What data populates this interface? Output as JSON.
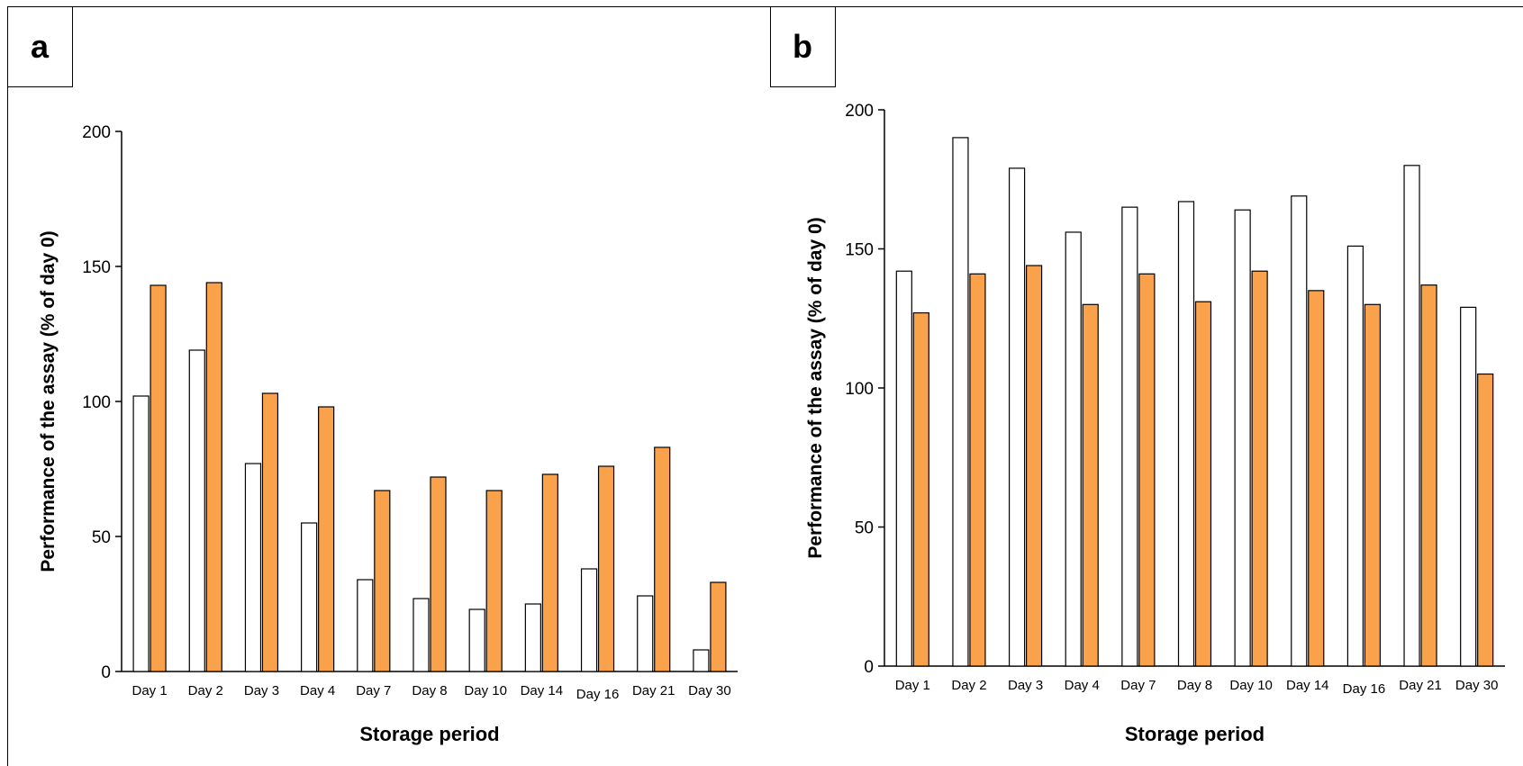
{
  "colors": {
    "series1": "#ffffff",
    "series2": "#f9a24b",
    "stroke": "#000000"
  },
  "chart_data": [
    {
      "type": "bar",
      "panel_label": "a",
      "categories": [
        "Day 1",
        "Day 2",
        "Day 3",
        "Day 4",
        "Day 7",
        "Day 8",
        "Day 10",
        "Day 14",
        "Day 16",
        "Day 21",
        "Day 30"
      ],
      "series": [
        {
          "values": [
            102,
            119,
            77,
            55,
            34,
            27,
            23,
            25,
            38,
            28,
            8
          ]
        },
        {
          "values": [
            143,
            144,
            103,
            98,
            67,
            72,
            67,
            73,
            76,
            83,
            33
          ]
        }
      ],
      "xlabel": "Storage period",
      "ylabel": "Performance of the assay (% of day 0)",
      "ylim": [
        0,
        200
      ],
      "yticks": [
        "0",
        "50",
        "100",
        "150",
        "200"
      ]
    },
    {
      "type": "bar",
      "panel_label": "b",
      "categories": [
        "Day 1",
        "Day 2",
        "Day 3",
        "Day 4",
        "Day 7",
        "Day 8",
        "Day 10",
        "Day 14",
        "Day 16",
        "Day 21",
        "Day 30"
      ],
      "series": [
        {
          "values": [
            142,
            190,
            179,
            156,
            165,
            167,
            164,
            169,
            151,
            180,
            129
          ]
        },
        {
          "values": [
            127,
            141,
            144,
            130,
            141,
            131,
            142,
            135,
            130,
            137,
            105
          ]
        }
      ],
      "xlabel": "Storage period",
      "ylabel": "Performance of the assay (% of day 0)",
      "ylim": [
        0,
        200
      ],
      "yticks": [
        "0",
        "50",
        "100",
        "150",
        "200"
      ]
    }
  ]
}
